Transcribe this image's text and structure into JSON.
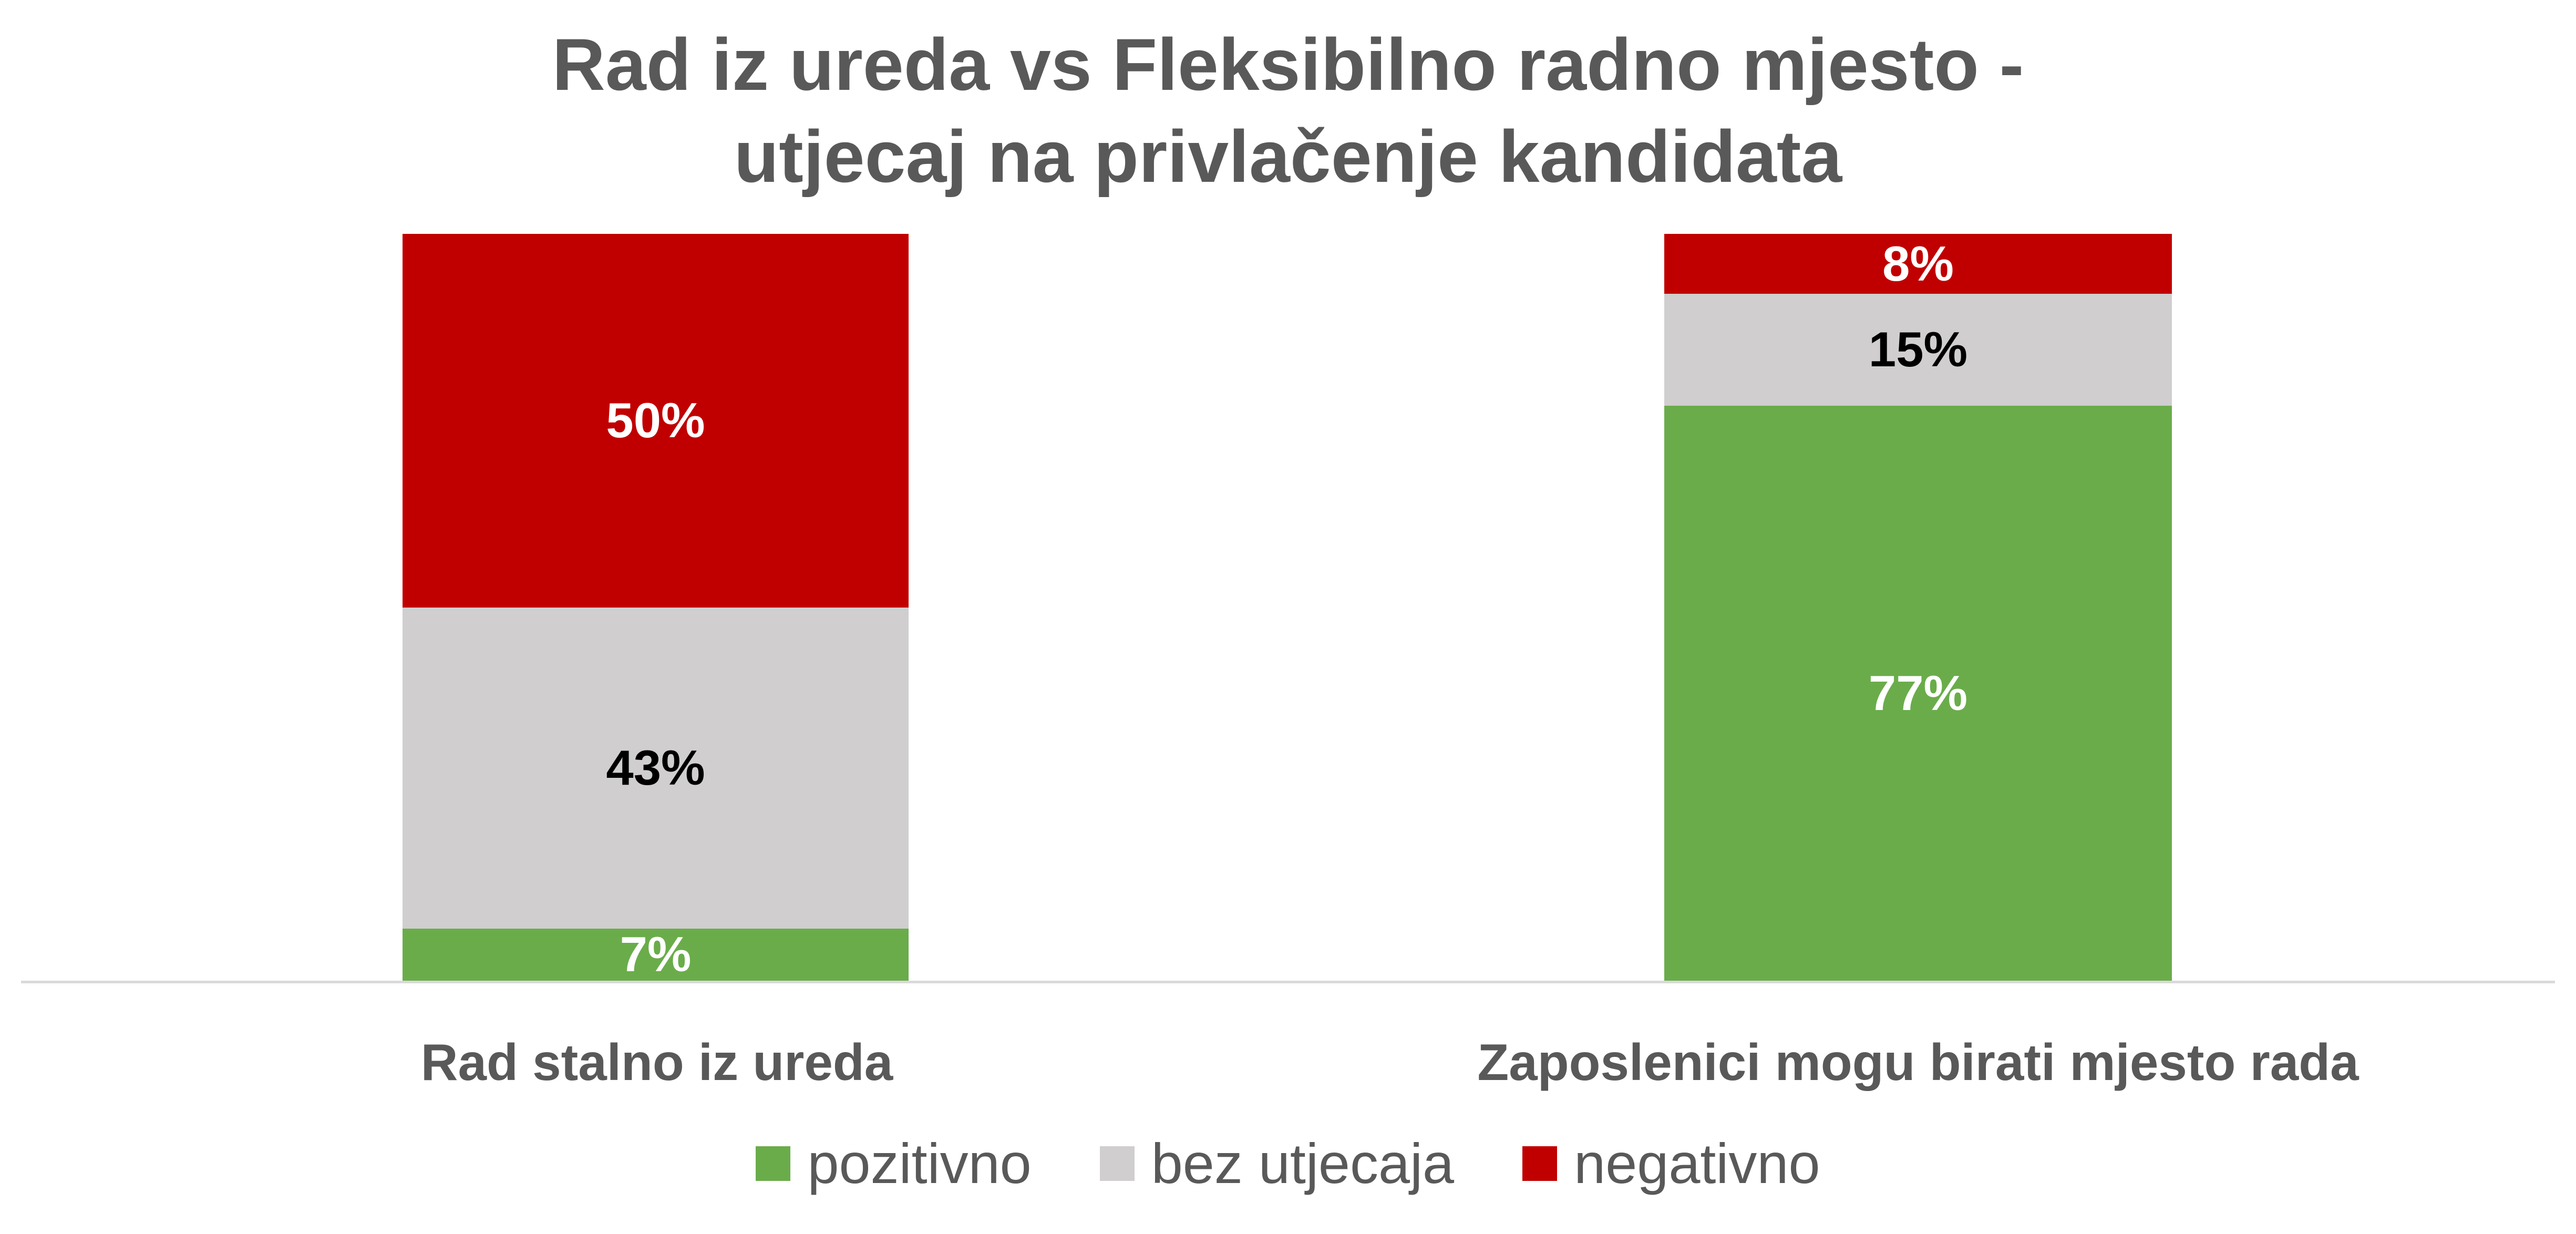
{
  "title": {
    "line1": "Rad iz ureda vs Fleksibilno radno mjesto -",
    "line2": "utjecaj na privlačenje kandidata"
  },
  "chart_data": {
    "type": "bar",
    "subtype": "stacked-100",
    "title": "Rad iz ureda vs Fleksibilno radno mjesto - utjecaj na privlačenje kandidata",
    "unit": "%",
    "categories": [
      "Rad stalno iz ureda",
      "Zaposlenici mogu birati mjesto rada"
    ],
    "series": [
      {
        "name": "pozitivno",
        "color": "#6AAC4A",
        "label_color": "#FFFFFF",
        "values": [
          7,
          77
        ]
      },
      {
        "name": "bez utjecaja",
        "color": "#D0CECE",
        "label_color": "#000000",
        "values": [
          43,
          15
        ]
      },
      {
        "name": "negativno",
        "color": "#C00000",
        "label_color": "#FFFFFF",
        "values": [
          50,
          8
        ]
      }
    ],
    "stack_order_top_to_bottom": [
      "negativno",
      "bez utjecaja",
      "pozitivno"
    ],
    "ylim": [
      0,
      100
    ],
    "gridlines": false,
    "legend_position": "bottom",
    "data_labels": [
      "7%",
      "43%",
      "50%",
      "77%",
      "15%",
      "8%"
    ]
  },
  "colors": {
    "title_text": "#595959",
    "category_text": "#595959",
    "legend_text": "#595959",
    "axis_line": "#D9D9D9",
    "background": "#FFFFFF"
  }
}
